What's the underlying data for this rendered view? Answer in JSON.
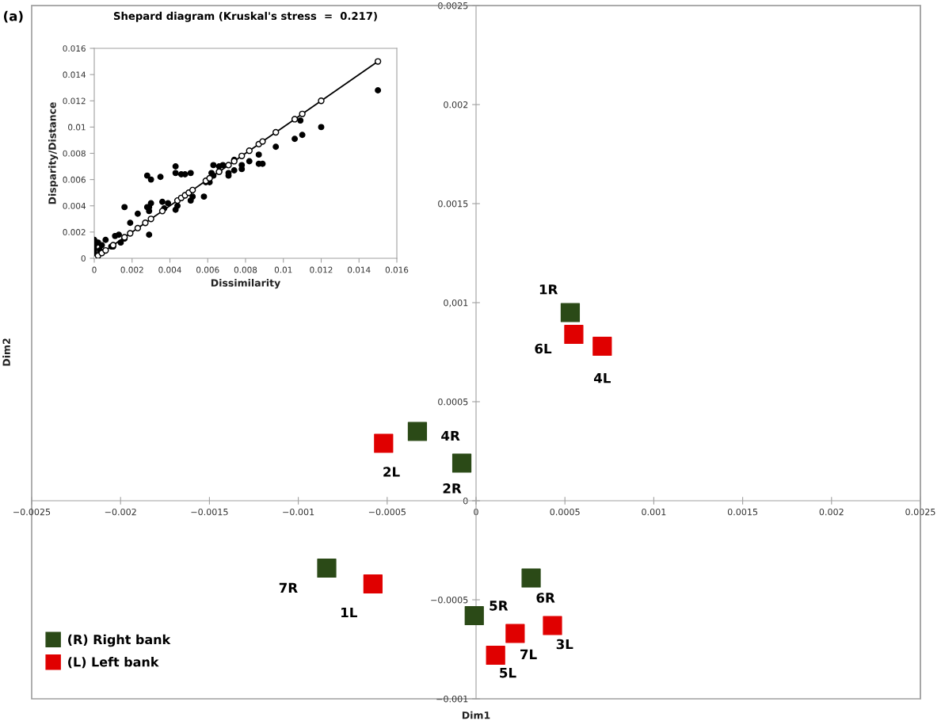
{
  "chart_data": [
    {
      "type": "scatter",
      "xlabel": "Dim1",
      "ylabel": "Dim2",
      "marker": "square",
      "legend": "bottom left",
      "xlim": [
        -0.0025,
        0.0025
      ],
      "ylim": [
        -0.001,
        0.0025
      ],
      "xticks": [
        {
          "value": -0.0025,
          "label": "−0.0025"
        },
        {
          "value": -0.002,
          "label": "−0.002"
        },
        {
          "value": -0.0015,
          "label": "−0.0015"
        },
        {
          "value": -0.001,
          "label": "−0.001"
        },
        {
          "value": -0.0005,
          "label": "−0.0005"
        },
        0,
        0.0005,
        0.001,
        0.0015,
        0.002,
        0.0025
      ],
      "yticks": [
        {
          "value": -0.001,
          "label": "−0.001"
        },
        {
          "value": -0.0005,
          "label": "−0.0005"
        },
        0,
        0.0005,
        {
          "value": 0.001,
          "label": "0,001"
        },
        0.0015,
        0.002,
        0.0025
      ],
      "series": [
        {
          "name": "(R) Right bank",
          "color": "#2b4a17",
          "x": [
            0.00053,
            -0.00033,
            -8e-05,
            -0.00084,
            0.00031,
            -1e-05
          ],
          "values": [
            0.00095,
            0.00035,
            0.00019,
            -0.00034,
            -0.00039,
            -0.00058
          ]
        },
        {
          "name": "(L) Left bank",
          "color": "#e00000",
          "x": [
            0.00055,
            0.00071,
            -0.00052,
            -0.00058,
            0.00043,
            0.00022,
            0.00011
          ],
          "values": [
            0.00084,
            0.00078,
            0.00029,
            -0.00042,
            -0.00063,
            -0.00067,
            -0.00078
          ]
        }
      ],
      "annotations": [
        "(a)",
        {
          "text": "1R",
          "x": 0.00053,
          "y": 0.00095
        },
        {
          "text": "6L",
          "x": 0.00055,
          "y": 0.00084
        },
        {
          "text": "4L",
          "x": 0.00071,
          "y": 0.00078
        },
        {
          "text": "4R",
          "x": -0.00033,
          "y": 0.00035
        },
        {
          "text": "2L",
          "x": -0.00052,
          "y": 0.00029
        },
        {
          "text": "2R",
          "x": -8e-05,
          "y": 0.00019
        },
        {
          "text": "7R",
          "x": -0.00084,
          "y": -0.00034
        },
        {
          "text": "1L",
          "x": -0.00058,
          "y": -0.00042
        },
        {
          "text": "6R",
          "x": 0.00031,
          "y": -0.00039
        },
        {
          "text": "5R",
          "x": -1e-05,
          "y": -0.00058
        },
        {
          "text": "3L",
          "x": 0.00043,
          "y": -0.00063
        },
        {
          "text": "7L",
          "x": 0.00022,
          "y": -0.00067
        },
        {
          "text": "5L",
          "x": 0.00011,
          "y": -0.00078
        }
      ]
    },
    {
      "type": "scatter",
      "title": "Shepard diagram (Kruskal's stress  =  0.217)",
      "xlabel": "Dissimilarity",
      "ylabel": "Disparity/Distance",
      "marker": "circle",
      "xlim": [
        0,
        0.016
      ],
      "ylim": [
        0,
        0.016
      ],
      "xticks": [
        0,
        0.002,
        0.004,
        0.006,
        0.008,
        0.01,
        0.012,
        0.014,
        0.016
      ],
      "yticks": [
        0,
        0.002,
        0.004,
        0.006,
        0.008,
        0.01,
        0.012,
        0.014,
        0.016
      ],
      "series": [
        {
          "color": "#000000",
          "x": [
            0.015,
            0.012,
            0.0109,
            0.011,
            0.0106,
            0.0096,
            0.0087,
            0.0087,
            0.0089,
            0.0082,
            0.0078,
            0.0078,
            0.0074,
            0.0074,
            0.0071,
            0.0071,
            0.0068,
            0.0066,
            0.0066,
            0.0063,
            0.0063,
            0.0062,
            0.0061,
            0.0059,
            0.0058,
            0.0051,
            0.0052,
            0.0051,
            0.0048,
            0.0046,
            0.0043,
            0.0043,
            0.0044,
            0.0043,
            0.0039,
            0.0037,
            0.0036,
            0.0035,
            0.003,
            0.0028,
            0.003,
            0.0029,
            0.0028,
            0.0029,
            0.0029,
            0.0023,
            0.0019,
            0.0016,
            0.0016,
            0.0013,
            0.0011,
            0.0014,
            0.001,
            0.0009,
            0.0006,
            0.0004,
            0.0002,
            0,
            0,
            0,
            0,
            0.0003
          ],
          "values": [
            0.0128,
            0.01,
            0.0105,
            0.0094,
            0.0091,
            0.0085,
            0.0079,
            0.0072,
            0.0072,
            0.0074,
            0.0071,
            0.0068,
            0.0067,
            0.0075,
            0.0065,
            0.0063,
            0.0071,
            0.007,
            0.0066,
            0.0071,
            0.0063,
            0.0065,
            0.0058,
            0.0058,
            0.0047,
            0.0065,
            0.0047,
            0.0044,
            0.0064,
            0.0064,
            0.0065,
            0.007,
            0.004,
            0.0037,
            0.0042,
            0.0038,
            0.0043,
            0.0062,
            0.006,
            0.0063,
            0.0042,
            0.0039,
            0.0039,
            0.0036,
            0.0018,
            0.0034,
            0.0027,
            0.0039,
            0.0015,
            0.0018,
            0.0017,
            0.0012,
            0.0009,
            0.0009,
            0.0014,
            0.001,
            0.0012,
            0.0014,
            0.001,
            0.0007,
            0.0004,
            0.0006
          ]
        },
        {
          "type": "line",
          "color": "#000000",
          "x": [
            0,
            0.0002,
            0.0004,
            0.0006,
            0.001,
            0.0016,
            0.0019,
            0.0023,
            0.0027,
            0.003,
            0.0036,
            0.0044,
            0.0046,
            0.0048,
            0.005,
            0.0052,
            0.0059,
            0.0061,
            0.0066,
            0.0071,
            0.0074,
            0.0078,
            0.0082,
            0.0087,
            0.0089,
            0.0096,
            0.0106,
            0.011,
            0.012,
            0.015
          ],
          "values": [
            0,
            0.0002,
            0.0004,
            0.0006,
            0.001,
            0.0016,
            0.0019,
            0.0023,
            0.0027,
            0.003,
            0.0036,
            0.0044,
            0.0046,
            0.0048,
            0.005,
            0.0052,
            0.0059,
            0.0061,
            0.0066,
            0.0071,
            0.0074,
            0.0078,
            0.0082,
            0.0087,
            0.0089,
            0.0096,
            0.0106,
            0.011,
            0.012,
            0.015
          ]
        }
      ]
    }
  ]
}
